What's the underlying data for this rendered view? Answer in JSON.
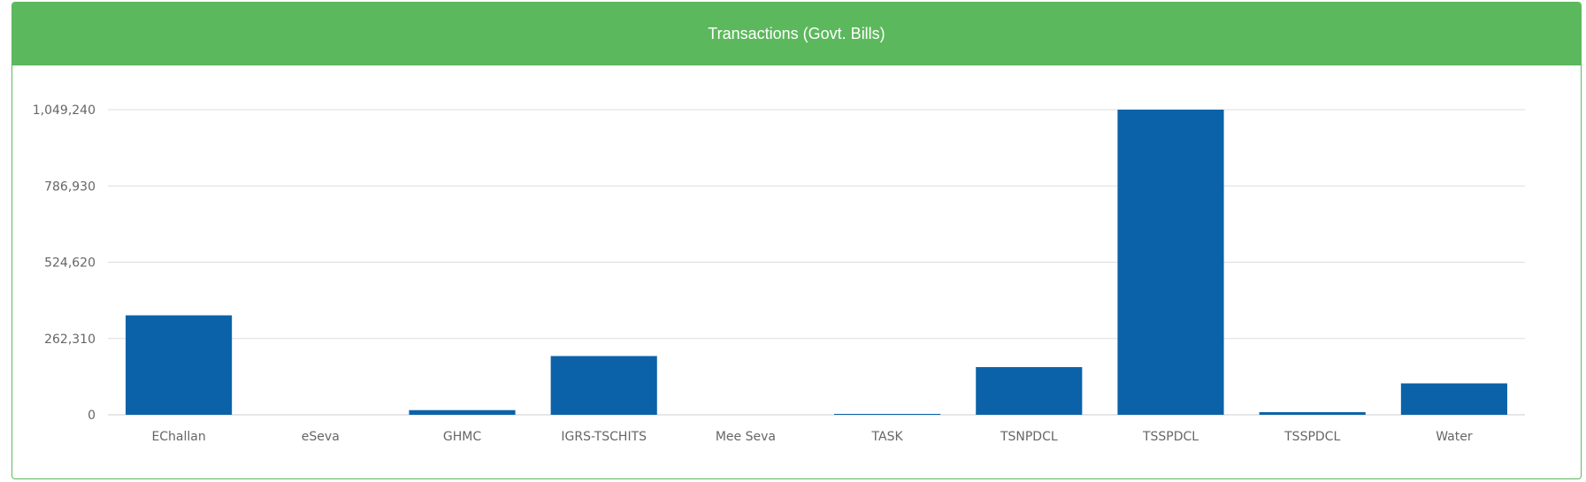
{
  "panel": {
    "title": "Transactions (Govt. Bills)"
  },
  "chart_data": {
    "type": "bar",
    "categories": [
      "EChallan",
      "eSeva",
      "GHMC",
      "IGRS-TSCHITS",
      "Mee Seva",
      "TASK",
      "TSNPDCL",
      "TSSPDCL",
      "TSSPDCL",
      "Water"
    ],
    "values": [
      342000,
      0,
      16000,
      202000,
      0,
      1500,
      164000,
      1049240,
      9000,
      108000
    ],
    "yticks": [
      "0",
      "262,310",
      "524,620",
      "786,930",
      "1,049,240"
    ],
    "ylim": [
      0,
      1049240
    ],
    "grid": true,
    "colors": {
      "bar": "#0b62a8",
      "grid": "#dddddd",
      "axis": "#cccccc",
      "text": "#666666"
    }
  }
}
